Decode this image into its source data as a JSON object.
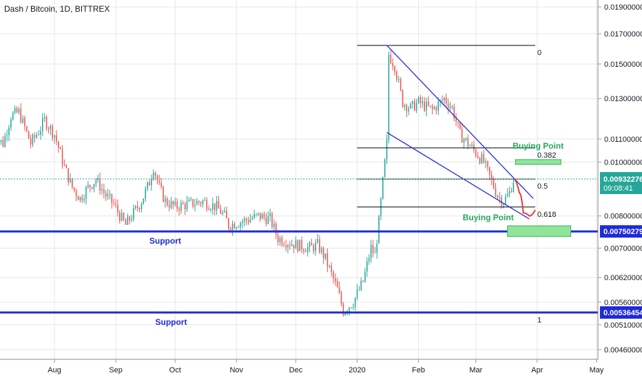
{
  "header": {
    "symbol_title": "Dash / Bitcoin, 1D, BITTREX"
  },
  "chart_data": {
    "type": "candlestick",
    "title": "Dash / Bitcoin, 1D, BITTREX",
    "x_ticks": [
      "Aug",
      "Sep",
      "Oct",
      "Nov",
      "Dec",
      "2020",
      "Feb",
      "Mar",
      "Apr",
      "May"
    ],
    "y_ticks": [
      "0.01900000",
      "0.01700000",
      "0.01500000",
      "0.01300000",
      "0.01100000",
      "0.01000000",
      "0.00800000",
      "0.00700000",
      "0.00620000",
      "0.00560000",
      "0.00510000",
      "0.00460000"
    ],
    "y_scale": "log",
    "price_path": [
      {
        "date": "2019-07-01",
        "price": 0.0111
      },
      {
        "date": "2019-07-06",
        "price": 0.0108
      },
      {
        "date": "2019-07-10",
        "price": 0.0121
      },
      {
        "date": "2019-07-14",
        "price": 0.0123
      },
      {
        "date": "2019-07-20",
        "price": 0.0108
      },
      {
        "date": "2019-07-25",
        "price": 0.0115
      },
      {
        "date": "2019-07-27",
        "price": 0.0119
      },
      {
        "date": "2019-08-01",
        "price": 0.0112
      },
      {
        "date": "2019-08-06",
        "price": 0.0098
      },
      {
        "date": "2019-08-10",
        "price": 0.009
      },
      {
        "date": "2019-08-14",
        "price": 0.0086
      },
      {
        "date": "2019-08-18",
        "price": 0.009
      },
      {
        "date": "2019-08-22",
        "price": 0.0093
      },
      {
        "date": "2019-08-27",
        "price": 0.0087
      },
      {
        "date": "2019-08-31",
        "price": 0.0084
      },
      {
        "date": "2019-09-04",
        "price": 0.0079
      },
      {
        "date": "2019-09-06",
        "price": 0.0077
      },
      {
        "date": "2019-09-10",
        "price": 0.0081
      },
      {
        "date": "2019-09-14",
        "price": 0.0085
      },
      {
        "date": "2019-09-18",
        "price": 0.0092
      },
      {
        "date": "2019-09-20",
        "price": 0.0098
      },
      {
        "date": "2019-09-23",
        "price": 0.009
      },
      {
        "date": "2019-09-26",
        "price": 0.0085
      },
      {
        "date": "2019-10-01",
        "price": 0.0083
      },
      {
        "date": "2019-10-08",
        "price": 0.0084
      },
      {
        "date": "2019-10-15",
        "price": 0.0085
      },
      {
        "date": "2019-10-22",
        "price": 0.0083
      },
      {
        "date": "2019-10-26",
        "price": 0.008
      },
      {
        "date": "2019-10-28",
        "price": 0.0077
      },
      {
        "date": "2019-11-03",
        "price": 0.0078
      },
      {
        "date": "2019-11-12",
        "price": 0.008
      },
      {
        "date": "2019-11-18",
        "price": 0.0079
      },
      {
        "date": "2019-11-22",
        "price": 0.0073
      },
      {
        "date": "2019-11-26",
        "price": 0.0072
      },
      {
        "date": "2019-12-01",
        "price": 0.0071
      },
      {
        "date": "2019-12-08",
        "price": 0.007
      },
      {
        "date": "2019-12-12",
        "price": 0.0071
      },
      {
        "date": "2019-12-16",
        "price": 0.0067
      },
      {
        "date": "2019-12-22",
        "price": 0.0059
      },
      {
        "date": "2019-12-25",
        "price": 0.0054
      },
      {
        "date": "2019-12-30",
        "price": 0.0056
      },
      {
        "date": "2020-01-04",
        "price": 0.0061
      },
      {
        "date": "2020-01-08",
        "price": 0.007
      },
      {
        "date": "2020-01-10",
        "price": 0.0068
      },
      {
        "date": "2020-01-12",
        "price": 0.0078
      },
      {
        "date": "2020-01-14",
        "price": 0.0092
      },
      {
        "date": "2020-01-16",
        "price": 0.0108
      },
      {
        "date": "2020-01-17",
        "price": 0.0156
      },
      {
        "date": "2020-01-20",
        "price": 0.0149
      },
      {
        "date": "2020-01-24",
        "price": 0.0128
      },
      {
        "date": "2020-01-28",
        "price": 0.0125
      },
      {
        "date": "2020-02-01",
        "price": 0.0128
      },
      {
        "date": "2020-02-08",
        "price": 0.0124
      },
      {
        "date": "2020-02-14",
        "price": 0.013
      },
      {
        "date": "2020-02-18",
        "price": 0.0125
      },
      {
        "date": "2020-02-22",
        "price": 0.0112
      },
      {
        "date": "2020-02-26",
        "price": 0.0108
      },
      {
        "date": "2020-03-01",
        "price": 0.0104
      },
      {
        "date": "2020-03-05",
        "price": 0.01
      },
      {
        "date": "2020-03-08",
        "price": 0.0094
      },
      {
        "date": "2020-03-12",
        "price": 0.0087
      },
      {
        "date": "2020-03-15",
        "price": 0.0085
      },
      {
        "date": "2020-03-18",
        "price": 0.0088
      },
      {
        "date": "2020-03-20",
        "price": 0.0093
      }
    ],
    "projection_path": [
      {
        "date": "2020-03-20",
        "price": 0.00932
      },
      {
        "date": "2020-03-23",
        "price": 0.0088
      },
      {
        "date": "2020-03-25",
        "price": 0.0081
      },
      {
        "date": "2020-03-28",
        "price": 0.008
      },
      {
        "date": "2020-03-31",
        "price": 0.0082
      }
    ],
    "fib_levels": [
      {
        "label": "0",
        "price": 0.0162
      },
      {
        "label": "0.382",
        "price": 0.0106
      },
      {
        "label": "0.5",
        "price": 0.00932
      },
      {
        "label": "0.618",
        "price": 0.0083
      },
      {
        "label": "1",
        "price": 0.00536
      }
    ],
    "fib_range": {
      "start": "2020-01-01",
      "end": "2020-03-31"
    },
    "support_lines": [
      {
        "label": "Support",
        "price": 0.00750279,
        "price_label": "0.00750279"
      },
      {
        "label": "Support",
        "price": 0.00536454,
        "price_label": "0.00536454"
      }
    ],
    "wedge_lines": [
      {
        "from": {
          "date": "2020-01-16",
          "price": 0.0162
        },
        "to": {
          "date": "2020-03-30",
          "price": 0.0086
        }
      },
      {
        "from": {
          "date": "2020-01-16",
          "price": 0.0113
        },
        "to": {
          "date": "2020-03-28",
          "price": 0.0079
        }
      }
    ],
    "buying_zones": [
      {
        "label": "Buying Point",
        "from": "2020-03-21",
        "to": "2020-04-13",
        "price_low": 0.0099,
        "price_high": 0.0101
      },
      {
        "label": "Buying Point",
        "from": "2020-03-17",
        "to": "2020-04-18",
        "price_low": 0.00735,
        "price_high": 0.00768
      }
    ],
    "current_price": {
      "price": 0.00932276,
      "price_label": "0.00932276",
      "countdown": "09:08:41"
    },
    "ylim": [
      0.0045,
      0.0205
    ]
  },
  "colors": {
    "up": "#26a69a",
    "down": "#ef5350",
    "support": "#1f2bd6",
    "wedge": "#1f2bd6",
    "fib": "#000000",
    "buy_zone": "#8fe59a",
    "buy_text": "#26a65b",
    "projection": "#e53935",
    "current": "#26a69a",
    "axis_text": "#131722",
    "grid": "#e6e6e6"
  }
}
